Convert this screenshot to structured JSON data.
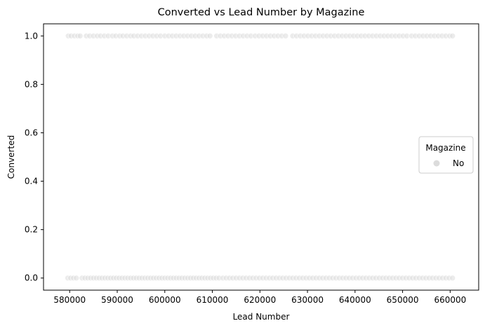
{
  "chart_data": {
    "type": "scatter",
    "title": "Converted vs Lead Number by Magazine",
    "xlabel": "Lead Number",
    "ylabel": "Converted",
    "xlim": [
      574500,
      666000
    ],
    "ylim": [
      -0.05,
      1.05
    ],
    "xticks": [
      580000,
      590000,
      600000,
      610000,
      620000,
      630000,
      640000,
      650000,
      660000
    ],
    "xtick_labels": [
      "580000",
      "590000",
      "600000",
      "610000",
      "620000",
      "630000",
      "640000",
      "650000",
      "660000"
    ],
    "yticks": [
      0.0,
      0.2,
      0.4,
      0.6,
      0.8,
      1.0
    ],
    "ytick_labels": [
      "0.0",
      "0.2",
      "0.4",
      "0.6",
      "0.8",
      "1.0"
    ],
    "grid": false,
    "legend": {
      "title": "Magazine",
      "placement": "center-right",
      "entries": [
        {
          "label": "No",
          "color": "#dcdcdc"
        }
      ]
    },
    "series": [
      {
        "name": "No",
        "color": "#dcdcdc",
        "y_levels": [
          0,
          1
        ],
        "x_min": 579500,
        "x_max": 660700,
        "points_converted_1": [
          579700,
          580300,
          581000,
          581700,
          582200,
          583500,
          584200,
          585000,
          585800,
          586500,
          587300,
          588100,
          589000,
          589700,
          590500,
          591200,
          592000,
          592800,
          593500,
          594300,
          595100,
          595900,
          596700,
          597500,
          598300,
          599100,
          600000,
          600800,
          601600,
          602400,
          603200,
          604000,
          604800,
          605600,
          606400,
          607200,
          608000,
          608800,
          609500,
          610900,
          611700,
          612500,
          613300,
          614100,
          614900,
          615700,
          616500,
          617300,
          618100,
          619000,
          619800,
          620600,
          621400,
          622200,
          623000,
          623800,
          624600,
          625400,
          626900,
          627700,
          628500,
          629300,
          630100,
          630900,
          631700,
          632500,
          633300,
          634100,
          634900,
          635700,
          636500,
          637300,
          638100,
          638900,
          639700,
          640500,
          641300,
          642100,
          642900,
          643700,
          644500,
          645300,
          646100,
          646900,
          647700,
          648500,
          649300,
          650100,
          650900,
          651900,
          652700,
          653500,
          654300,
          655100,
          655900,
          656700,
          657500,
          658300,
          659100,
          659900,
          660500
        ],
        "points_converted_0": [
          579600,
          580200,
          580800,
          581400,
          582600,
          583200,
          583800,
          584400,
          585000,
          585600,
          586200,
          586800,
          587400,
          588000,
          588600,
          589200,
          589800,
          590400,
          591000,
          591600,
          592200,
          592800,
          593400,
          594000,
          594600,
          595200,
          595800,
          596400,
          597000,
          597600,
          598200,
          598800,
          599400,
          600000,
          600600,
          601200,
          601800,
          602400,
          603000,
          603600,
          604200,
          604800,
          605400,
          606000,
          606600,
          607200,
          607800,
          608400,
          609000,
          609600,
          610200,
          610800,
          611400,
          612200,
          612900,
          613600,
          614300,
          615000,
          615700,
          616400,
          617100,
          617800,
          618500,
          619200,
          619900,
          620600,
          621300,
          622000,
          622700,
          623400,
          624100,
          624800,
          625500,
          626200,
          626900,
          627600,
          628300,
          629000,
          629700,
          630400,
          631100,
          631800,
          632500,
          633200,
          633900,
          634600,
          635300,
          636000,
          636700,
          637400,
          638100,
          638800,
          639500,
          640200,
          640900,
          641600,
          642300,
          643000,
          643700,
          644400,
          645100,
          645800,
          646500,
          647200,
          647900,
          648600,
          649300,
          650000,
          650700,
          651400,
          652100,
          652800,
          653500,
          654200,
          654900,
          655600,
          656300,
          657000,
          657700,
          658400,
          659100,
          659800,
          660500
        ]
      }
    ]
  }
}
